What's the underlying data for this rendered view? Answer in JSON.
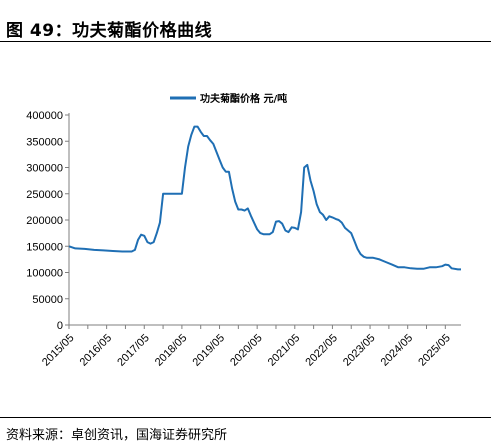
{
  "figure": {
    "title": "图 49：功夫菊酯价格曲线",
    "source": "资料来源：卓创资讯，国海证券研究所"
  },
  "colors": {
    "line": "#1f6fb4",
    "axis": "#7f7f7f",
    "text": "#000000"
  },
  "chart_data": {
    "type": "line",
    "title": "",
    "xlabel": "",
    "ylabel": "",
    "legend": {
      "position": "top-center",
      "entries": [
        "功夫菊酯价格 元/吨"
      ]
    },
    "ylim": [
      0,
      400000
    ],
    "yticks": [
      0,
      50000,
      100000,
      150000,
      200000,
      250000,
      300000,
      350000,
      400000
    ],
    "xlim": [
      "2015-05",
      "2025-10"
    ],
    "xtick_labels": [
      "2015/05",
      "2016/05",
      "2017/05",
      "2018/05",
      "2019/05",
      "2020/05",
      "2021/05",
      "2022/05",
      "2023/05",
      "2024/05",
      "2025/05"
    ],
    "grid": false,
    "series": [
      {
        "name": "功夫菊酯价格 元/吨",
        "color": "#1f6fb4",
        "points": [
          [
            "2015-05",
            150000
          ],
          [
            "2015-07",
            146000
          ],
          [
            "2015-10",
            145000
          ],
          [
            "2016-01",
            143000
          ],
          [
            "2016-04",
            142000
          ],
          [
            "2016-07",
            141000
          ],
          [
            "2016-10",
            140000
          ],
          [
            "2017-01",
            140000
          ],
          [
            "2017-02",
            143000
          ],
          [
            "2017-03",
            162000
          ],
          [
            "2017-04",
            172000
          ],
          [
            "2017-05",
            170000
          ],
          [
            "2017-06",
            158000
          ],
          [
            "2017-07",
            155000
          ],
          [
            "2017-08",
            158000
          ],
          [
            "2017-09",
            175000
          ],
          [
            "2017-10",
            195000
          ],
          [
            "2017-11",
            250000
          ],
          [
            "2018-02",
            250000
          ],
          [
            "2018-05",
            250000
          ],
          [
            "2018-06",
            300000
          ],
          [
            "2018-07",
            340000
          ],
          [
            "2018-08",
            362000
          ],
          [
            "2018-09",
            378000
          ],
          [
            "2018-10",
            378000
          ],
          [
            "2018-11",
            368000
          ],
          [
            "2018-12",
            360000
          ],
          [
            "2019-01",
            360000
          ],
          [
            "2019-02",
            352000
          ],
          [
            "2019-03",
            345000
          ],
          [
            "2019-04",
            330000
          ],
          [
            "2019-05",
            315000
          ],
          [
            "2019-06",
            300000
          ],
          [
            "2019-07",
            292000
          ],
          [
            "2019-08",
            292000
          ],
          [
            "2019-09",
            260000
          ],
          [
            "2019-10",
            235000
          ],
          [
            "2019-11",
            220000
          ],
          [
            "2019-12",
            220000
          ],
          [
            "2020-01",
            218000
          ],
          [
            "2020-02",
            222000
          ],
          [
            "2020-03",
            208000
          ],
          [
            "2020-04",
            195000
          ],
          [
            "2020-05",
            182000
          ],
          [
            "2020-06",
            175000
          ],
          [
            "2020-07",
            173000
          ],
          [
            "2020-09",
            173000
          ],
          [
            "2020-10",
            177000
          ],
          [
            "2020-11",
            197000
          ],
          [
            "2020-12",
            198000
          ],
          [
            "2021-01",
            193000
          ],
          [
            "2021-02",
            180000
          ],
          [
            "2021-03",
            177000
          ],
          [
            "2021-04",
            186000
          ],
          [
            "2021-05",
            185000
          ],
          [
            "2021-06",
            182000
          ],
          [
            "2021-07",
            215000
          ],
          [
            "2021-08",
            300000
          ],
          [
            "2021-09",
            305000
          ],
          [
            "2021-10",
            275000
          ],
          [
            "2021-11",
            255000
          ],
          [
            "2021-12",
            230000
          ],
          [
            "2022-01",
            215000
          ],
          [
            "2022-02",
            210000
          ],
          [
            "2022-03",
            200000
          ],
          [
            "2022-04",
            207000
          ],
          [
            "2022-05",
            205000
          ],
          [
            "2022-06",
            202000
          ],
          [
            "2022-07",
            200000
          ],
          [
            "2022-08",
            195000
          ],
          [
            "2022-09",
            185000
          ],
          [
            "2022-10",
            180000
          ],
          [
            "2022-11",
            175000
          ],
          [
            "2022-12",
            160000
          ],
          [
            "2023-01",
            145000
          ],
          [
            "2023-02",
            135000
          ],
          [
            "2023-03",
            130000
          ],
          [
            "2023-04",
            128000
          ],
          [
            "2023-06",
            128000
          ],
          [
            "2023-08",
            125000
          ],
          [
            "2023-10",
            120000
          ],
          [
            "2023-12",
            115000
          ],
          [
            "2024-02",
            110000
          ],
          [
            "2024-04",
            110000
          ],
          [
            "2024-06",
            108000
          ],
          [
            "2024-08",
            107000
          ],
          [
            "2024-10",
            107000
          ],
          [
            "2024-12",
            110000
          ],
          [
            "2025-02",
            110000
          ],
          [
            "2025-04",
            112000
          ],
          [
            "2025-05",
            115000
          ],
          [
            "2025-06",
            114000
          ],
          [
            "2025-07",
            108000
          ],
          [
            "2025-09",
            106000
          ],
          [
            "2025-10",
            106000
          ]
        ]
      }
    ]
  }
}
